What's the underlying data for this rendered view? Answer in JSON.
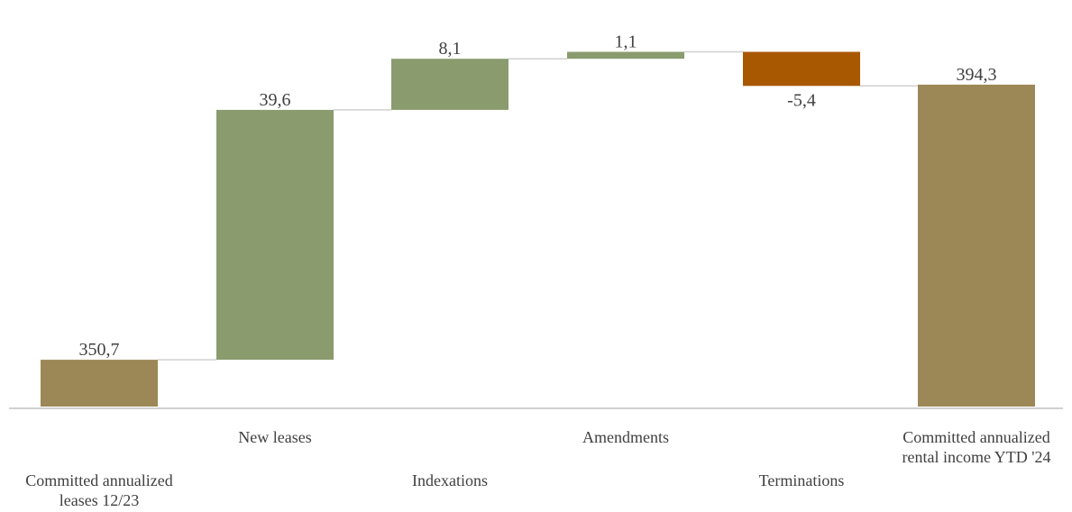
{
  "chart_data": {
    "type": "bar",
    "subtype": "waterfall",
    "title": "",
    "xlabel": "",
    "ylabel": "",
    "categories": [
      [
        "Committed annualized",
        "leases 12/23"
      ],
      [
        "New leases"
      ],
      [
        "Indexations"
      ],
      [
        "Amendments"
      ],
      [
        "Terminations"
      ],
      [
        "Committed annualized",
        "rental income YTD '24"
      ]
    ],
    "bars": [
      {
        "kind": "total",
        "value": 350.7,
        "label": "350,7",
        "label_position": "above"
      },
      {
        "kind": "increase",
        "value": 39.6,
        "label": "39,6",
        "label_position": "above"
      },
      {
        "kind": "increase",
        "value": 8.1,
        "label": "8,1",
        "label_position": "above"
      },
      {
        "kind": "increase",
        "value": 1.1,
        "label": "1,1",
        "label_position": "above"
      },
      {
        "kind": "decrease",
        "value": -5.4,
        "label": "-5,4",
        "label_position": "below"
      },
      {
        "kind": "total",
        "value": 394.3,
        "label": "394,3",
        "label_position": "above"
      }
    ],
    "colors": {
      "total": "#9c8756",
      "increase": "#8a9b6e",
      "decrease": "#a85800",
      "axis": "#d0d0d0",
      "connector": "#d0d0d0",
      "text": "#404040"
    },
    "axis_break": true,
    "grid": false,
    "legend": "none"
  }
}
